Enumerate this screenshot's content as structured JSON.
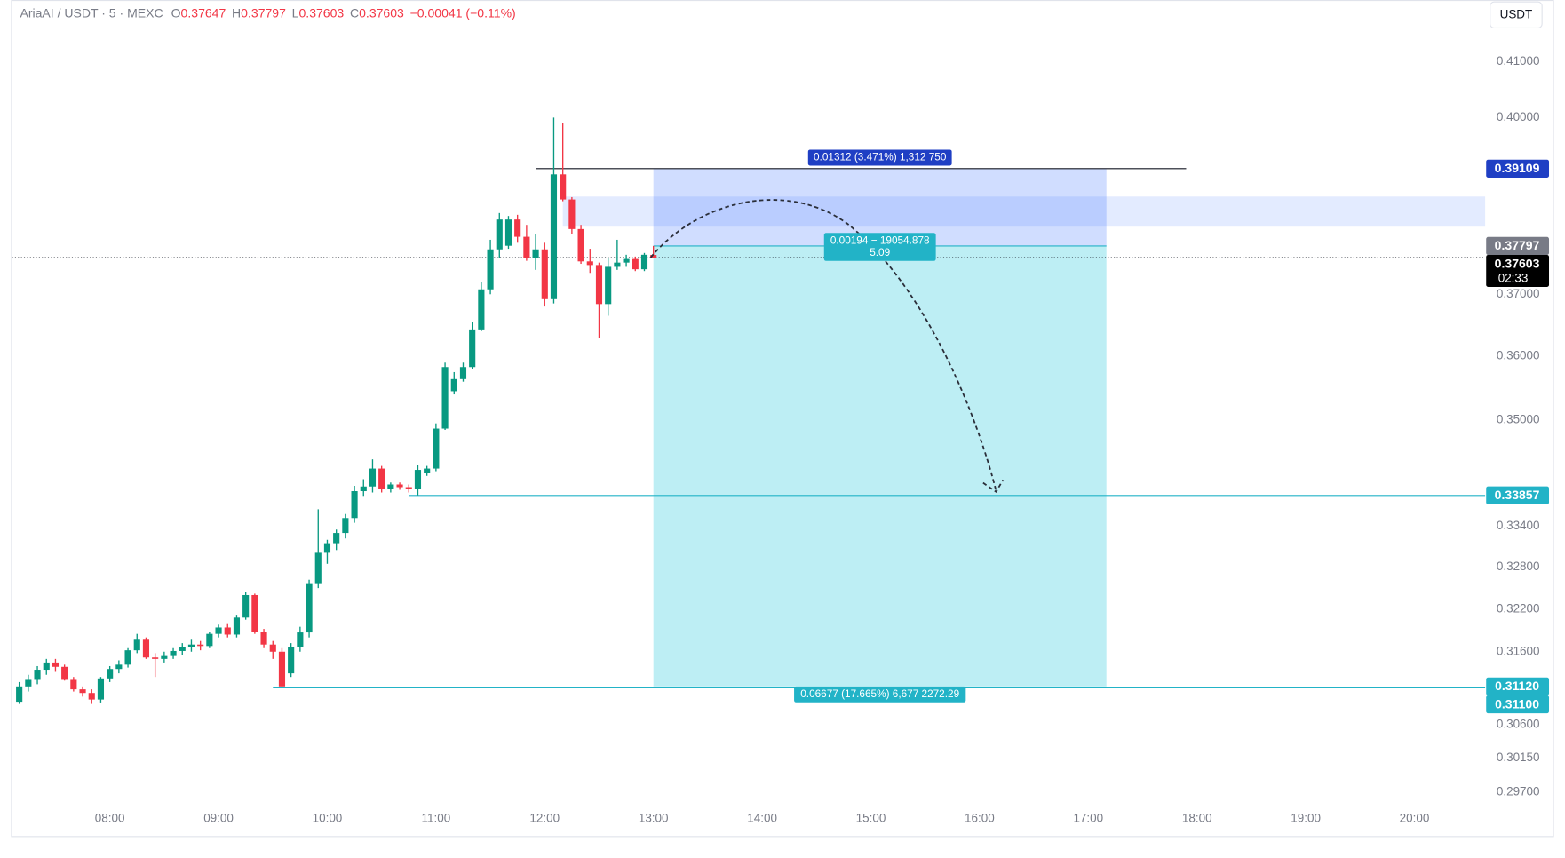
{
  "chart_data": {
    "type": "candlestick",
    "symbol": "AriaAI / USDT · 5 · MEXC",
    "ohlc_labels": [
      "O",
      "H",
      "L",
      "C"
    ],
    "change": "−0.00041 (−0.11%)",
    "currency": "USDT",
    "up_color": "#089981",
    "down_color": "#f23645",
    "x": [
      430,
      435,
      440,
      445,
      450,
      455,
      460,
      465,
      470,
      475,
      480,
      485,
      490,
      495,
      500,
      505,
      510,
      515,
      520,
      525,
      530,
      535,
      540,
      545,
      550,
      555,
      560,
      565,
      570,
      575,
      580,
      585,
      590,
      595,
      600,
      605,
      610,
      615,
      620,
      625,
      630,
      635,
      640,
      645,
      650,
      655,
      660,
      665,
      670,
      675,
      680,
      685,
      690,
      695,
      700,
      705,
      710,
      715,
      720,
      725,
      730,
      735,
      740,
      745,
      750,
      755,
      760,
      765,
      770,
      775,
      780
    ],
    "open": [
      0.3091,
      0.3112,
      0.3121,
      0.3135,
      0.3145,
      0.3139,
      0.3121,
      0.3108,
      0.3103,
      0.3094,
      0.3123,
      0.3136,
      0.3142,
      0.3162,
      0.3178,
      0.3152,
      0.315,
      0.3154,
      0.3161,
      0.3166,
      0.317,
      0.3168,
      0.3185,
      0.3194,
      0.3184,
      0.3208,
      0.324,
      0.3188,
      0.317,
      0.316,
      0.313,
      0.3166,
      0.3187,
      0.3257,
      0.3301,
      0.3315,
      0.333,
      0.3352,
      0.3392,
      0.3399,
      0.3426,
      0.3396,
      0.3402,
      0.3398,
      0.3396,
      0.342,
      0.3426,
      0.3487,
      0.3545,
      0.3564,
      0.3583,
      0.3643,
      0.3708,
      0.3774,
      0.378,
      0.3824,
      0.3795,
      0.376,
      0.3774,
      0.3692,
      0.3901,
      0.3858,
      0.3808,
      0.3754,
      0.3748,
      0.3684,
      0.3745,
      0.3752,
      0.3758,
      0.3741,
      0.37647
    ],
    "high": [
      0.3118,
      0.3128,
      0.314,
      0.315,
      0.315,
      0.3142,
      0.3125,
      0.3112,
      0.3108,
      0.3125,
      0.314,
      0.3148,
      0.3165,
      0.3185,
      0.318,
      0.3158,
      0.316,
      0.3165,
      0.3172,
      0.3178,
      0.3175,
      0.3188,
      0.3198,
      0.32,
      0.3212,
      0.3245,
      0.3242,
      0.3192,
      0.3175,
      0.3165,
      0.3172,
      0.3195,
      0.3262,
      0.3365,
      0.332,
      0.3335,
      0.3358,
      0.34,
      0.341,
      0.344,
      0.343,
      0.3405,
      0.3405,
      0.3402,
      0.3432,
      0.343,
      0.3495,
      0.359,
      0.3575,
      0.359,
      0.3655,
      0.372,
      0.379,
      0.3835,
      0.383,
      0.3832,
      0.3815,
      0.38,
      0.3785,
      0.4,
      0.399,
      0.3862,
      0.3815,
      0.3775,
      0.3752,
      0.376,
      0.379,
      0.3765,
      0.3762,
      0.3768,
      0.37797
    ],
    "low": [
      0.3088,
      0.3105,
      0.3115,
      0.3128,
      0.3132,
      0.312,
      0.3105,
      0.3098,
      0.3088,
      0.309,
      0.3118,
      0.313,
      0.3138,
      0.3158,
      0.315,
      0.3125,
      0.3145,
      0.315,
      0.3155,
      0.316,
      0.3162,
      0.3165,
      0.318,
      0.318,
      0.318,
      0.3205,
      0.3185,
      0.3165,
      0.315,
      0.3112,
      0.3125,
      0.316,
      0.318,
      0.325,
      0.3285,
      0.3305,
      0.3322,
      0.3345,
      0.3385,
      0.339,
      0.339,
      0.339,
      0.3394,
      0.339,
      0.3386,
      0.3415,
      0.3422,
      0.3485,
      0.354,
      0.356,
      0.358,
      0.364,
      0.37,
      0.376,
      0.3775,
      0.3785,
      0.3755,
      0.374,
      0.368,
      0.3685,
      0.3855,
      0.38,
      0.375,
      0.3735,
      0.363,
      0.3665,
      0.374,
      0.3745,
      0.3738,
      0.3738,
      0.37603
    ],
    "close": [
      0.3112,
      0.3121,
      0.3135,
      0.3145,
      0.3139,
      0.3121,
      0.3108,
      0.3103,
      0.3094,
      0.3123,
      0.3136,
      0.3142,
      0.3162,
      0.3178,
      0.3152,
      0.315,
      0.3154,
      0.3161,
      0.3166,
      0.317,
      0.3168,
      0.3185,
      0.3194,
      0.3184,
      0.3208,
      0.324,
      0.3188,
      0.317,
      0.316,
      0.3112,
      0.3166,
      0.3187,
      0.3257,
      0.3301,
      0.3315,
      0.333,
      0.3352,
      0.3392,
      0.3399,
      0.3426,
      0.3396,
      0.3402,
      0.3398,
      0.3396,
      0.3424,
      0.3426,
      0.3487,
      0.3583,
      0.3564,
      0.3583,
      0.3643,
      0.3708,
      0.3774,
      0.3824,
      0.3824,
      0.3795,
      0.376,
      0.3774,
      0.3692,
      0.3901,
      0.3858,
      0.3808,
      0.3754,
      0.3748,
      0.3684,
      0.3745,
      0.3752,
      0.3758,
      0.3741,
      0.3765,
      0.37603
    ],
    "xlim": [
      426,
      1239
    ],
    "xticks": [
      {
        "value": 480,
        "label": "08:00"
      },
      {
        "value": 540,
        "label": "09:00"
      },
      {
        "value": 600,
        "label": "10:00"
      },
      {
        "value": 660,
        "label": "11:00"
      },
      {
        "value": 720,
        "label": "12:00"
      },
      {
        "value": 780,
        "label": "13:00"
      },
      {
        "value": 840,
        "label": "14:00"
      },
      {
        "value": 900,
        "label": "15:00"
      },
      {
        "value": 960,
        "label": "16:00"
      },
      {
        "value": 1020,
        "label": "17:00"
      },
      {
        "value": 1080,
        "label": "18:00"
      },
      {
        "value": 1140,
        "label": "19:00"
      },
      {
        "value": 1200,
        "label": "20:00"
      }
    ],
    "ylim": [
      0.2917,
      0.4213
    ],
    "log_y": true,
    "yticks": [
      {
        "value": 0.41,
        "label": "0.41000"
      },
      {
        "value": 0.4,
        "label": "0.40000"
      },
      {
        "value": 0.37,
        "label": "0.37000"
      },
      {
        "value": 0.36,
        "label": "0.36000"
      },
      {
        "value": 0.35,
        "label": "0.35000"
      },
      {
        "value": 0.334,
        "label": "0.33400"
      },
      {
        "value": 0.328,
        "label": "0.32800"
      },
      {
        "value": 0.322,
        "label": "0.32200"
      },
      {
        "value": 0.316,
        "label": "0.31600"
      },
      {
        "value": 0.306,
        "label": "0.30600"
      },
      {
        "value": 0.3015,
        "label": "0.30150"
      },
      {
        "value": 0.297,
        "label": "0.29700"
      }
    ],
    "last_price": 0.37603,
    "zone": {
      "x_start": 730,
      "top": 0.3863,
      "bottom": 0.3812,
      "color": "rgba(41,98,255,0.13)"
    },
    "position": {
      "x_start": 780,
      "x_end": 1030,
      "entry": 0.37797,
      "stop": 0.39109,
      "target": 0.3112,
      "stop_label": "0.01312 (3.471%) 1,312 750",
      "target_label": "0.06677 (17.665%) 6,677 2272.29",
      "center_label": [
        "0.00194 − 19054.878",
        "5.09"
      ],
      "stop_color": "rgba(41,98,255,0.22)",
      "target_color": "rgba(0,188,212,0.26)",
      "stop_badge": "#1f3fc4",
      "target_badge": "#22b3c7"
    },
    "hlines": [
      {
        "price": 0.39109,
        "x_start": 715,
        "x_end": 1074,
        "color": "#131722"
      },
      {
        "price": 0.33857,
        "x_start": 645,
        "x_end": 1239,
        "color": "#22b3c7"
      },
      {
        "price": 0.311,
        "x_start": 570,
        "x_end": 1239,
        "color": "#22b3c7"
      }
    ],
    "badges": [
      {
        "price": 0.39109,
        "label": "0.39109",
        "color": "#1f3fc4"
      },
      {
        "price": 0.37797,
        "label": "0.37797",
        "color": "#787b86"
      },
      {
        "price": 0.37603,
        "label": "0.37603",
        "sub": "02:33",
        "color": "#000000"
      },
      {
        "price": 0.33857,
        "label": "0.33857",
        "color": "#22b3c7"
      },
      {
        "price": 0.3112,
        "label": "0.31120",
        "color": "#22b3c7"
      },
      {
        "price": 0.311,
        "label": "0.31100",
        "color": "#22b3c7"
      }
    ]
  }
}
